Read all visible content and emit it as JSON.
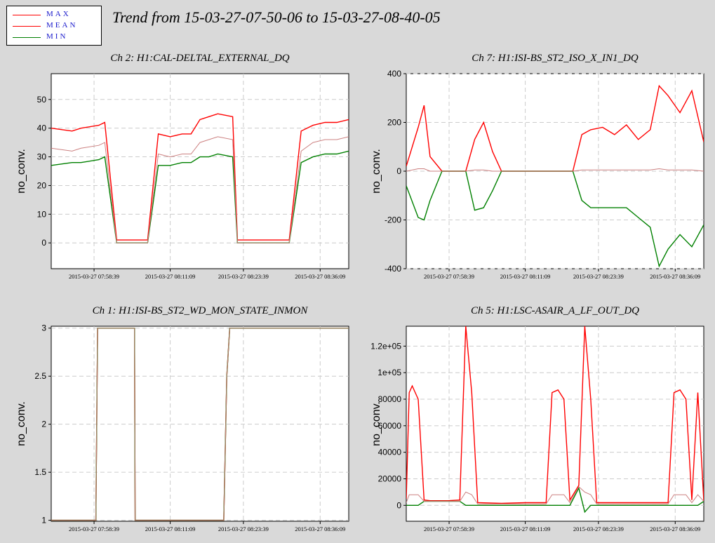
{
  "title": "Trend from 15-03-27-07-50-06 to 15-03-27-08-40-05",
  "legend": [
    {
      "label": "MAX",
      "color": "#ff0000"
    },
    {
      "label": "MEAN",
      "color": "#ff0000"
    },
    {
      "label": "MIN",
      "color": "#008000"
    }
  ],
  "colors": {
    "max": "#ff0000",
    "mean": "#cc8080",
    "min": "#008000",
    "grid": "#cccccc",
    "marker": "#000000"
  },
  "chart_data": [
    {
      "type": "line",
      "title": "Ch 2: H1:CAL-DELTAL_EXTERNAL_DQ",
      "ylabel": "no_conv.",
      "ylim": [
        -9,
        59
      ],
      "yticks": [
        0,
        10,
        20,
        30,
        40,
        50
      ],
      "ytick_labels": [
        "0",
        "10",
        "20",
        "30",
        "40",
        "50"
      ],
      "xticks": [
        "2015-03-27 07:58:39",
        "2015-03-27 08:11:09",
        "2015-03-27 08:23:39",
        "2015-03-27 08:36:09"
      ],
      "series": [
        {
          "name": "MAX",
          "x": [
            0.0,
            3.5,
            5.0,
            8.0,
            9.0,
            11.0,
            12.5,
            14.0,
            16.2,
            18.0,
            20.0,
            22.0,
            23.5,
            25.0,
            26.5,
            28.0,
            30.5,
            31.3,
            32.0,
            34.0,
            36.0,
            38.0,
            40.0,
            42.0,
            44.0,
            46.0,
            48.0,
            50.0
          ],
          "values": [
            40,
            39,
            40,
            41,
            42,
            1,
            1,
            1,
            1,
            38,
            37,
            38,
            38,
            43,
            44,
            45,
            44,
            1,
            1,
            1,
            1,
            1,
            1,
            39,
            41,
            42,
            42,
            43
          ]
        },
        {
          "name": "MEAN",
          "x": [
            0.0,
            3.5,
            5.0,
            8.0,
            9.0,
            11.0,
            12.5,
            14.0,
            16.2,
            18.0,
            20.0,
            22.0,
            23.5,
            25.0,
            26.5,
            28.0,
            30.5,
            31.3,
            32.0,
            34.0,
            36.0,
            38.0,
            40.0,
            42.0,
            44.0,
            46.0,
            48.0,
            50.0
          ],
          "values": [
            33,
            32,
            33,
            34,
            35,
            0,
            0,
            0,
            0,
            31,
            30,
            31,
            31,
            35,
            36,
            37,
            36,
            0,
            0,
            0,
            0,
            0,
            0,
            32,
            35,
            36,
            36,
            37
          ]
        },
        {
          "name": "MIN",
          "x": [
            0.0,
            3.5,
            5.0,
            8.0,
            9.0,
            11.0,
            12.5,
            14.0,
            16.2,
            18.0,
            20.0,
            22.0,
            23.5,
            25.0,
            26.5,
            28.0,
            30.5,
            31.3,
            32.0,
            34.0,
            36.0,
            38.0,
            40.0,
            42.0,
            44.0,
            46.0,
            48.0,
            50.0
          ],
          "values": [
            27,
            28,
            28,
            29,
            30,
            0,
            0,
            0,
            0,
            27,
            27,
            28,
            28,
            30,
            30,
            31,
            30,
            0,
            0,
            0,
            0,
            0,
            0,
            28,
            30,
            31,
            31,
            32
          ]
        }
      ]
    },
    {
      "type": "line",
      "title": "Ch 7: H1:ISI-BS_ST2_ISO_X_IN1_DQ",
      "ylabel": "no_conv.",
      "ylim": [
        -400,
        400
      ],
      "yticks": [
        -400,
        -200,
        0,
        200,
        400
      ],
      "ytick_labels": [
        "-400",
        "-200",
        "0",
        "200",
        "400"
      ],
      "xticks": [
        "2015-03-27 07:58:39",
        "2015-03-27 08:11:09",
        "2015-03-27 08:23:39",
        "2015-03-27 08:36:09"
      ],
      "series": [
        {
          "name": "MAX",
          "x": [
            0.0,
            2.0,
            3.0,
            4.0,
            6.0,
            8.0,
            10.0,
            11.5,
            13.0,
            14.5,
            16.0,
            20.0,
            24.0,
            28.0,
            29.5,
            31.0,
            33.0,
            35.0,
            37.0,
            39.0,
            41.0,
            42.5,
            44.0,
            46.0,
            48.0,
            50.0
          ],
          "values": [
            20,
            180,
            270,
            60,
            0,
            0,
            0,
            130,
            200,
            80,
            0,
            0,
            0,
            0,
            150,
            170,
            180,
            150,
            190,
            130,
            170,
            350,
            310,
            240,
            330,
            120
          ]
        },
        {
          "name": "MEAN",
          "x": [
            0.0,
            2.0,
            3.0,
            4.0,
            6.0,
            8.0,
            10.0,
            11.5,
            13.0,
            14.5,
            16.0,
            20.0,
            24.0,
            28.0,
            29.5,
            31.0,
            33.0,
            35.0,
            37.0,
            39.0,
            41.0,
            42.5,
            44.0,
            46.0,
            48.0,
            50.0
          ],
          "values": [
            0,
            10,
            10,
            0,
            0,
            0,
            0,
            5,
            5,
            0,
            0,
            0,
            0,
            0,
            5,
            5,
            5,
            5,
            5,
            5,
            5,
            10,
            5,
            5,
            5,
            0
          ]
        },
        {
          "name": "MIN",
          "x": [
            0.0,
            2.0,
            3.0,
            4.0,
            6.0,
            8.0,
            10.0,
            11.5,
            13.0,
            14.5,
            16.0,
            20.0,
            24.0,
            28.0,
            29.5,
            31.0,
            33.0,
            35.0,
            37.0,
            39.0,
            41.0,
            42.5,
            44.0,
            46.0,
            48.0,
            50.0
          ],
          "values": [
            -60,
            -190,
            -200,
            -120,
            0,
            0,
            0,
            -160,
            -150,
            -80,
            0,
            0,
            0,
            0,
            -120,
            -150,
            -150,
            -150,
            -150,
            -190,
            -230,
            -390,
            -320,
            -260,
            -310,
            -220
          ]
        }
      ]
    },
    {
      "type": "line",
      "title": "Ch 1: H1:ISI-BS_ST2_WD_MON_STATE_INMON",
      "ylabel": "no_conv.",
      "ylim": [
        0.99,
        3.02
      ],
      "yticks": [
        1,
        1.5,
        2,
        2.5,
        3
      ],
      "ytick_labels": [
        "1",
        "1.5",
        "2",
        "2.5",
        "3"
      ],
      "xticks": [
        "2015-03-27 07:58:39",
        "2015-03-27 08:11:09",
        "2015-03-27 08:23:39",
        "2015-03-27 08:36:09"
      ],
      "series": [
        {
          "name": "MAX",
          "x": [
            0.0,
            7.5,
            7.8,
            14.0,
            14.1,
            29.0,
            29.5,
            30.0,
            50.0
          ],
          "values": [
            1,
            1,
            3,
            3,
            1,
            1,
            2.5,
            3,
            3
          ]
        },
        {
          "name": "MEAN",
          "x": [
            0.0,
            7.5,
            7.8,
            14.0,
            14.1,
            29.0,
            29.5,
            30.0,
            50.0
          ],
          "values": [
            1,
            1,
            3,
            3,
            1,
            1,
            2.5,
            3,
            3
          ]
        },
        {
          "name": "MIN",
          "x": [
            0.0,
            7.5,
            7.8,
            14.0,
            14.1,
            29.0,
            29.5,
            30.0,
            50.0
          ],
          "values": [
            1,
            1,
            3,
            3,
            1,
            1,
            2.5,
            3,
            3
          ]
        }
      ]
    },
    {
      "type": "line",
      "title": "Ch 5: H1:LSC-ASAIR_A_LF_OUT_DQ",
      "ylabel": "no_conv.",
      "ylim": [
        -12000,
        135000
      ],
      "yticks": [
        0,
        20000,
        40000,
        60000,
        80000,
        100000,
        120000
      ],
      "ytick_labels": [
        "0",
        "20000",
        "40000",
        "60000",
        "80000",
        "1e+05",
        "1.2e+05"
      ],
      "xticks": [
        "2015-03-27 07:58:39",
        "2015-03-27 08:11:09",
        "2015-03-27 08:23:39",
        "2015-03-27 08:36:09"
      ],
      "series": [
        {
          "name": "MAX",
          "x": [
            0.0,
            0.5,
            1.0,
            2.0,
            3.0,
            4.0,
            7.0,
            9.0,
            10.0,
            11.0,
            12.0,
            16.0,
            20.0,
            23.5,
            24.5,
            25.5,
            26.5,
            27.5,
            29.0,
            30.0,
            31.0,
            32.0,
            35.0,
            40.0,
            44.0,
            45.0,
            46.0,
            47.0,
            48.0,
            49.0,
            50.0
          ],
          "values": [
            5000,
            85000,
            90000,
            80000,
            4000,
            3500,
            3500,
            4000,
            135000,
            85000,
            2000,
            1500,
            2000,
            2000,
            85000,
            87000,
            80000,
            4000,
            15000,
            135000,
            80000,
            2000,
            2000,
            2000,
            2000,
            85000,
            87000,
            80000,
            4000,
            85000,
            3500
          ]
        },
        {
          "name": "MEAN",
          "x": [
            0.0,
            0.5,
            1.0,
            2.0,
            3.0,
            4.0,
            7.0,
            9.0,
            10.0,
            11.0,
            12.0,
            16.0,
            20.0,
            23.5,
            24.5,
            25.5,
            26.5,
            27.5,
            29.0,
            30.0,
            31.0,
            32.0,
            35.0,
            40.0,
            44.0,
            45.0,
            46.0,
            47.0,
            48.0,
            49.0,
            50.0
          ],
          "values": [
            2000,
            8000,
            8000,
            8000,
            3000,
            3000,
            3000,
            3000,
            10000,
            8000,
            1000,
            1000,
            1000,
            1000,
            8000,
            8000,
            8000,
            2000,
            14000,
            10000,
            8000,
            1000,
            1000,
            1000,
            1000,
            8000,
            8000,
            8000,
            2000,
            8000,
            3000
          ]
        },
        {
          "name": "MIN",
          "x": [
            0.0,
            0.5,
            1.0,
            2.0,
            3.0,
            4.0,
            7.0,
            9.0,
            10.0,
            11.0,
            12.0,
            16.0,
            20.0,
            23.5,
            24.5,
            25.5,
            26.5,
            27.5,
            29.0,
            30.0,
            31.0,
            32.0,
            35.0,
            40.0,
            44.0,
            45.0,
            46.0,
            47.0,
            48.0,
            49.0,
            50.0
          ],
          "values": [
            0,
            0,
            0,
            0,
            3000,
            3000,
            3000,
            3000,
            0,
            0,
            0,
            0,
            0,
            0,
            0,
            0,
            0,
            0,
            13000,
            -5000,
            0,
            0,
            0,
            0,
            0,
            0,
            0,
            0,
            0,
            0,
            3000
          ]
        }
      ]
    }
  ]
}
